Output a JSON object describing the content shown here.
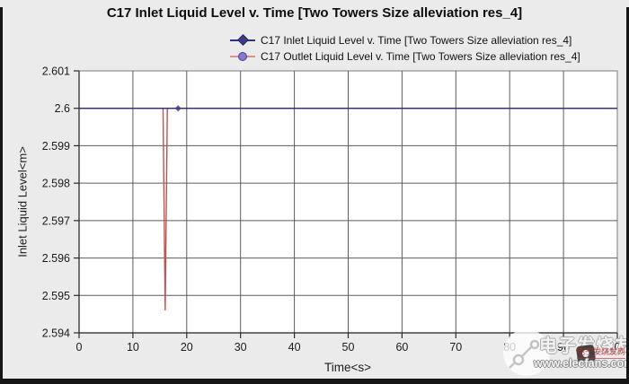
{
  "title": "C17 Inlet Liquid Level v. Time [Two Towers Size alleviation res_4]",
  "legend": [
    {
      "label": "C17 Inlet Liquid Level v. Time [Two Towers Size alleviation res_4]",
      "line_color": "#32327a",
      "marker": "diamond",
      "marker_color": "#3c3c85"
    },
    {
      "label": "C17 Outlet Liquid Level v. Time [Two Towers Size alleviation res_4]",
      "line_color": "#dd8f8f",
      "marker": "circle",
      "marker_color": "#8579cd"
    }
  ],
  "chart_data": {
    "type": "line",
    "title": "C17 Inlet Liquid Level v. Time [Two Towers Size alleviation res_4]",
    "xlabel": "Time<s>",
    "ylabel": "Inlet Liquid Level<m>",
    "xlim": [
      0,
      100
    ],
    "ylim": [
      2.594,
      2.601
    ],
    "xticks": [
      0,
      10,
      20,
      30,
      40,
      50,
      60,
      70,
      80,
      90,
      100
    ],
    "ytick_values": [
      2.601,
      2.6,
      2.599,
      2.598,
      2.597,
      2.596,
      2.595,
      2.594
    ],
    "ytick_labels": [
      "2.601",
      "2.6",
      "2.599",
      "2.598",
      "2.597",
      "2.596",
      "2.595",
      "2.594"
    ],
    "grid": true,
    "legend_position": "top",
    "plot_bg": "#ffffff",
    "grid_color": "#5c5c5c",
    "series": [
      {
        "name": "C17 Outlet Liquid Level v. Time [Two Towers Size alleviation res_4]",
        "color": "#bf5252",
        "x": [
          0,
          15.6,
          16.0,
          16.4,
          100
        ],
        "y": [
          2.6,
          2.6,
          2.5946,
          2.6,
          2.6
        ]
      },
      {
        "name": "C17 Inlet Liquid Level v. Time [Two Towers Size alleviation res_4]",
        "color": "#2e2e6e",
        "x": [
          0,
          100
        ],
        "y": [
          2.6,
          2.6
        ]
      }
    ],
    "point_markers": [
      {
        "x": 18.4,
        "y": 2.6,
        "shape": "diamond",
        "color": "#3c3c85"
      }
    ]
  },
  "watermark": {
    "cn": "电子发烧友",
    "url": "www.elecfans.com",
    "badge": "电子发烧友网"
  }
}
